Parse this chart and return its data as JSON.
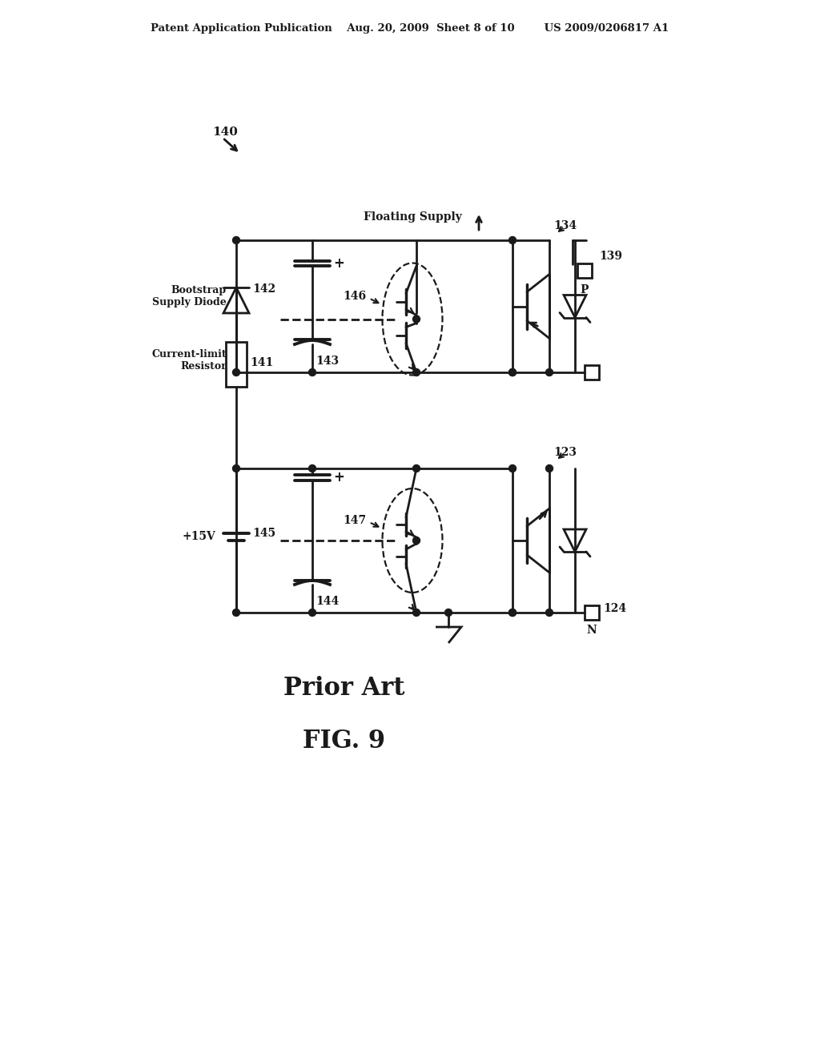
{
  "bg_color": "#ffffff",
  "line_color": "#1a1a1a",
  "header_text": "Patent Application Publication    Aug. 20, 2009  Sheet 8 of 10        US 2009/0206817 A1",
  "label_140": "140",
  "label_prior_art": "Prior Art",
  "label_fig": "FIG. 9",
  "label_floating_supply": "Floating Supply",
  "label_134": "134",
  "label_139": "139",
  "label_P": "P",
  "label_146": "146",
  "label_143": "143",
  "label_bootstrap": "Bootstrap\nSupply Diode",
  "label_142": "142",
  "label_currentlimit": "Current-limit\nResistor",
  "label_141": "141",
  "label_123": "123",
  "label_147": "147",
  "label_145": "145",
  "label_144": "144",
  "label_124": "124",
  "label_N": "N",
  "label_15v": "+15V"
}
